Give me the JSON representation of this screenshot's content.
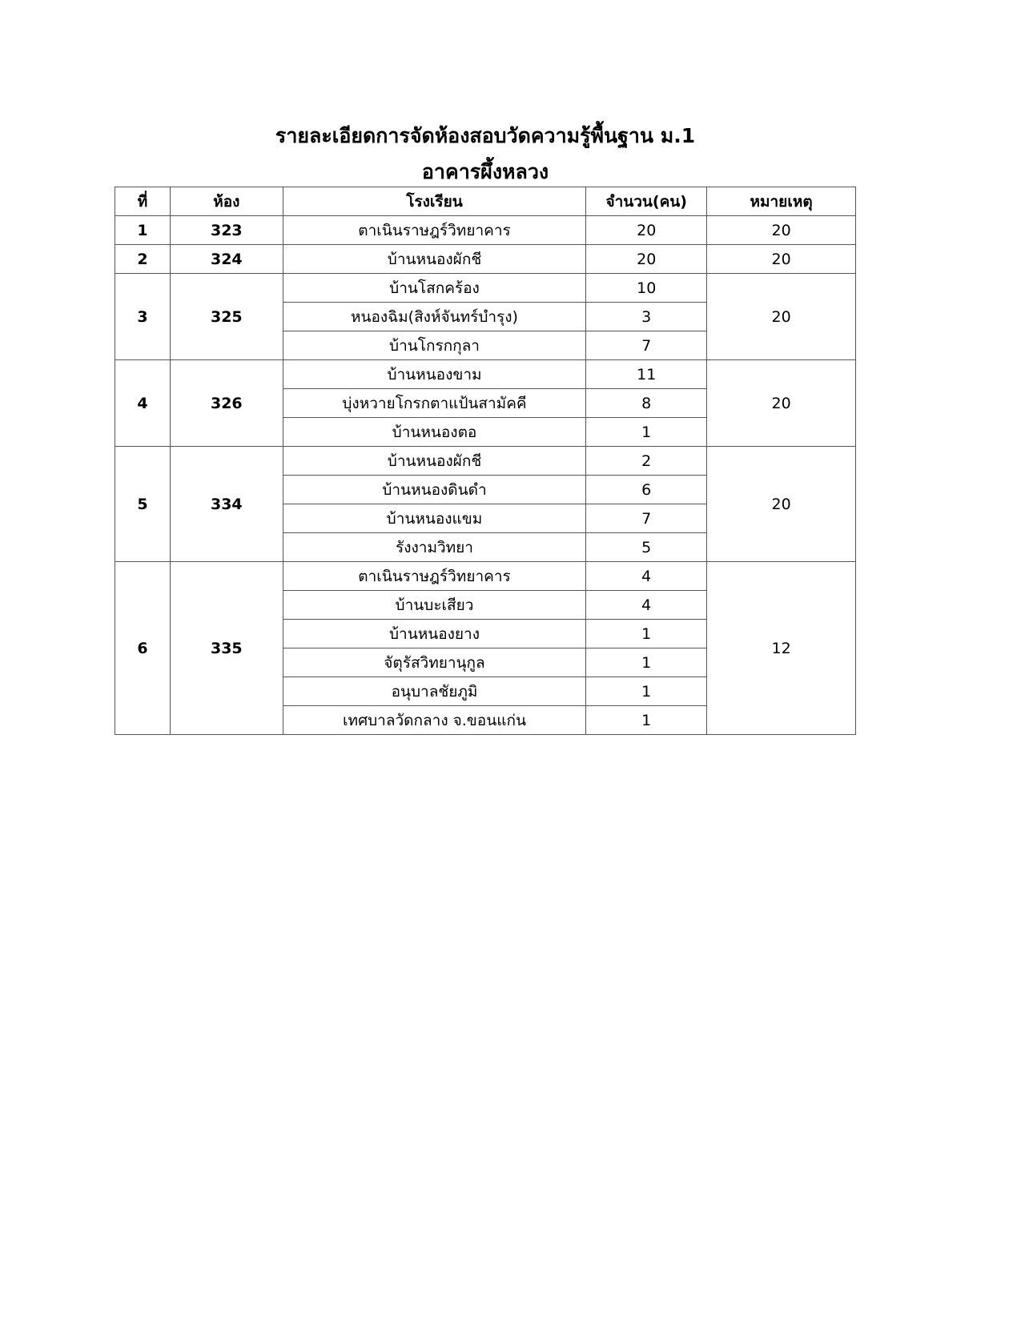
{
  "title": "รายละเอียดการจัดห้องสอบวัดความรู้พื้นฐาน ม.1",
  "subtitle": "อาคารผึ้งหลวง",
  "table": {
    "headers": [
      "ที่",
      "ห้อง",
      "โรงเรียน",
      "จำนวน(คน)",
      "หมายเหตุ"
    ],
    "groups": [
      {
        "no": "1",
        "room": "323",
        "note": "20",
        "schools": [
          {
            "name": "ตาเนินราษฎร์วิทยาคาร",
            "count": "20"
          }
        ]
      },
      {
        "no": "2",
        "room": "324",
        "note": "20",
        "schools": [
          {
            "name": "บ้านหนองผักชี",
            "count": "20"
          }
        ]
      },
      {
        "no": "3",
        "room": "325",
        "note": "20",
        "schools": [
          {
            "name": "บ้านโสกคร้อง",
            "count": "10"
          },
          {
            "name": "หนองฉิม(สิงห์จันทร์บำรุง)",
            "count": "3"
          },
          {
            "name": "บ้านโกรกกุลา",
            "count": "7"
          }
        ]
      },
      {
        "no": "4",
        "room": "326",
        "note": "20",
        "schools": [
          {
            "name": "บ้านหนองขาม",
            "count": "11"
          },
          {
            "name": "บุ่งหวายโกรกตาแป้นสามัคคี",
            "count": "8"
          },
          {
            "name": "บ้านหนองตอ",
            "count": "1"
          }
        ]
      },
      {
        "no": "5",
        "room": "334",
        "note": "20",
        "schools": [
          {
            "name": "บ้านหนองผักชี",
            "count": "2"
          },
          {
            "name": "บ้านหนองดินดำ",
            "count": "6"
          },
          {
            "name": "บ้านหนองแขม",
            "count": "7"
          },
          {
            "name": "รังงามวิทยา",
            "count": "5"
          }
        ]
      },
      {
        "no": "6",
        "room": "335",
        "note": "12",
        "schools": [
          {
            "name": "ตาเนินราษฎร์วิทยาคาร",
            "count": "4"
          },
          {
            "name": "บ้านบะเสียว",
            "count": "4"
          },
          {
            "name": "บ้านหนองยาง",
            "count": "1"
          },
          {
            "name": "จัตุรัสวิทยานุกูล",
            "count": "1"
          },
          {
            "name": "อนุบาลชัยภูมิ",
            "count": "1"
          },
          {
            "name": "เทศบาลวัดกลาง จ.ขอนแก่น",
            "count": "1"
          }
        ]
      }
    ]
  }
}
